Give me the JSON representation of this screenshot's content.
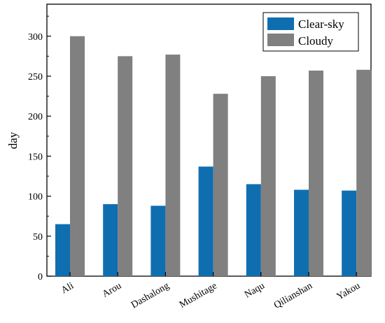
{
  "chart_data": {
    "type": "bar",
    "title": "",
    "xlabel": "",
    "ylabel": "day",
    "ylim": [
      0,
      340
    ],
    "yticks": [
      0,
      50,
      100,
      150,
      200,
      250,
      300
    ],
    "categories": [
      "Ali",
      "Arou",
      "Dashalong",
      "Mushitage",
      "Naqu",
      "Qilianshan",
      "Yakou"
    ],
    "series": [
      {
        "name": "Clear-sky",
        "color": "#0F6EB0",
        "values": [
          65,
          90,
          88,
          137,
          115,
          108,
          107
        ]
      },
      {
        "name": "Cloudy",
        "color": "#808080",
        "values": [
          300,
          275,
          277,
          228,
          250,
          257,
          258
        ]
      }
    ],
    "legend_position": "top-right",
    "grid": false
  }
}
